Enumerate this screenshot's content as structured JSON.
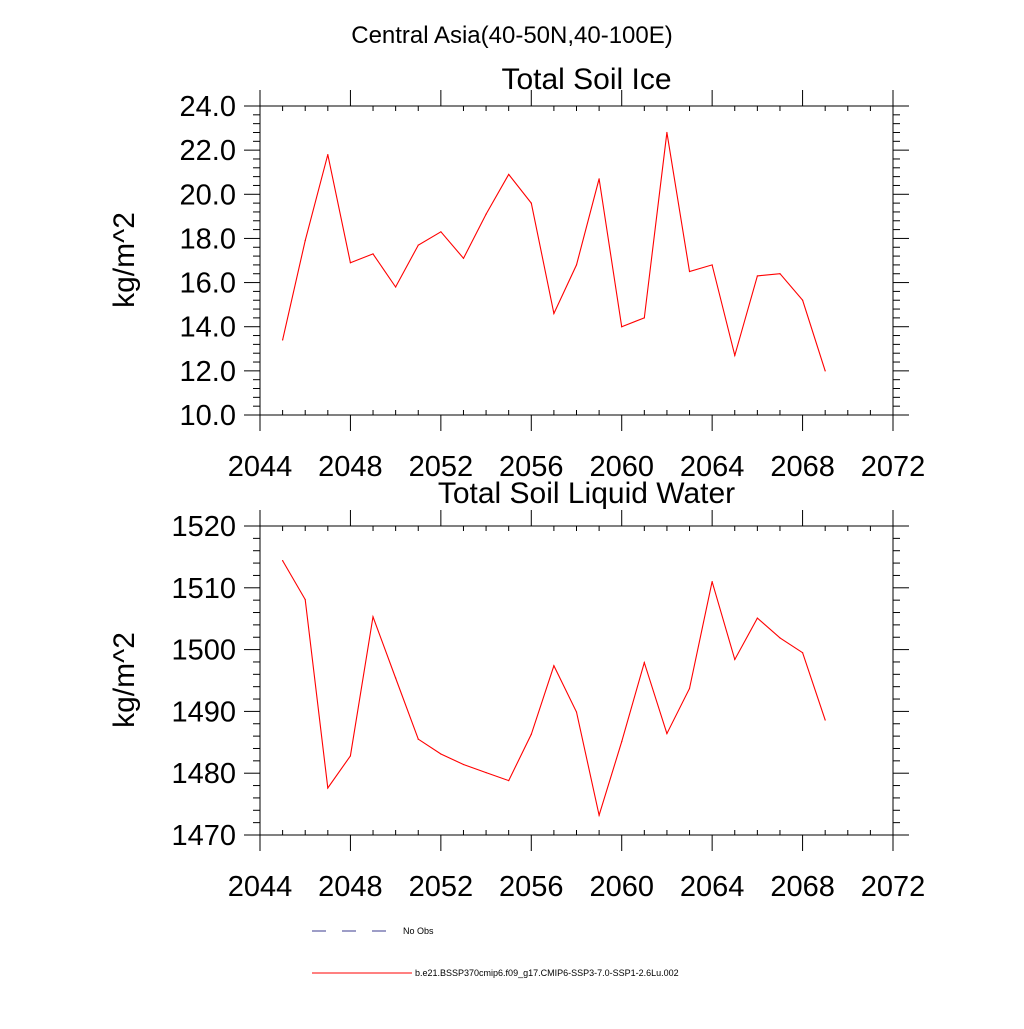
{
  "figure_title": "Central Asia(40-50N,40-100E)",
  "colors": {
    "series": "#ff0000",
    "no_obs": "#3b3b8f",
    "axis": "#000000"
  },
  "legend": {
    "no_obs_label": "No Obs",
    "series_label": "b.e21.BSSP370cmip6.f09_g17.CMIP6-SSP3-7.0-SSP1-2.6Lu.002"
  },
  "chart_data": [
    {
      "type": "line",
      "title": "Total Soil Ice",
      "xlabel": "",
      "ylabel": "kg/m^2",
      "xlim": [
        2044,
        2072
      ],
      "ylim": [
        10,
        24
      ],
      "x_ticks": [
        "2044",
        "2048",
        "2052",
        "2056",
        "2060",
        "2064",
        "2068",
        "2072"
      ],
      "y_ticks": [
        "10.0",
        "12.0",
        "14.0",
        "16.0",
        "18.0",
        "20.0",
        "22.0",
        "24.0"
      ],
      "x": [
        2045,
        2046,
        2047,
        2048,
        2049,
        2050,
        2051,
        2052,
        2053,
        2054,
        2055,
        2056,
        2057,
        2058,
        2059,
        2060,
        2061,
        2062,
        2063,
        2064,
        2065,
        2066,
        2067,
        2068,
        2069
      ],
      "series": [
        {
          "values": [
            13.4,
            17.9,
            21.8,
            16.9,
            17.3,
            15.8,
            17.7,
            18.3,
            17.1,
            19.1,
            20.9,
            19.6,
            14.6,
            16.8,
            20.7,
            14.0,
            14.4,
            22.8,
            16.5,
            16.8,
            12.7,
            16.3,
            16.4,
            15.2,
            12.0
          ]
        }
      ]
    },
    {
      "type": "line",
      "title": "Total Soil Liquid Water",
      "xlabel": "",
      "ylabel": "kg/m^2",
      "xlim": [
        2044,
        2072
      ],
      "ylim": [
        1470,
        1520
      ],
      "x_ticks": [
        "2044",
        "2048",
        "2052",
        "2056",
        "2060",
        "2064",
        "2068",
        "2072"
      ],
      "y_ticks": [
        "1470",
        "1480",
        "1490",
        "1500",
        "1510",
        "1520"
      ],
      "x": [
        2045,
        2046,
        2047,
        2048,
        2049,
        2050,
        2051,
        2052,
        2053,
        2054,
        2055,
        2056,
        2057,
        2058,
        2059,
        2060,
        2061,
        2062,
        2063,
        2064,
        2065,
        2066,
        2067,
        2068,
        2069
      ],
      "series": [
        {
          "values": [
            1514.4,
            1508.1,
            1477.6,
            1482.8,
            1505.3,
            1495.4,
            1485.5,
            1483.1,
            1481.4,
            1480.1,
            1478.8,
            1486.3,
            1497.4,
            1489.9,
            1473.2,
            1485.1,
            1497.9,
            1486.4,
            1493.7,
            1511.0,
            1498.4,
            1505.1,
            1501.9,
            1499.5,
            1488.6
          ]
        }
      ]
    }
  ]
}
